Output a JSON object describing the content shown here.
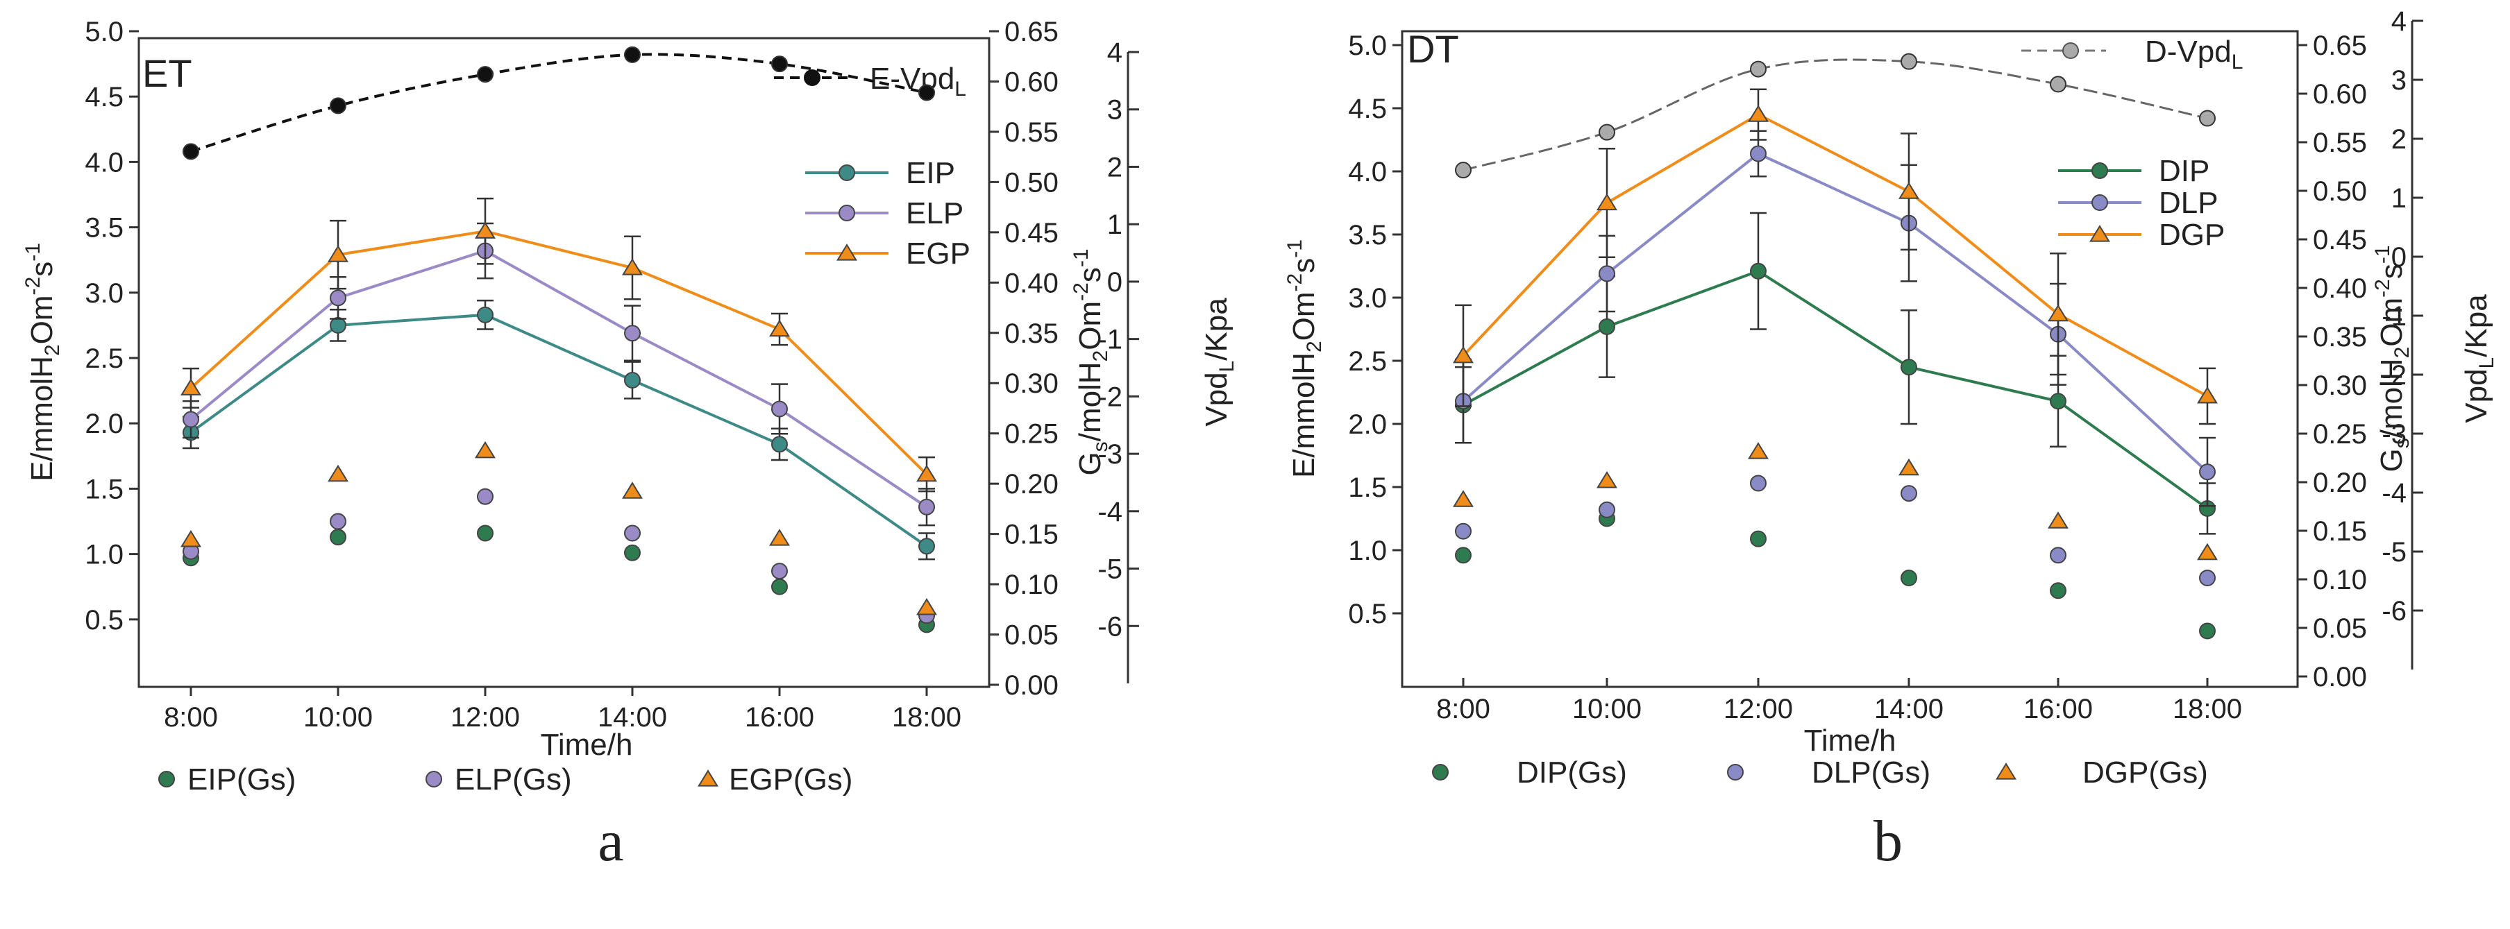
{
  "chart_data": [
    {
      "type": "line",
      "panel_tag": "ET",
      "panel_label": "a",
      "xlabel": "Time/h",
      "categories": [
        "8:00",
        "10:00",
        "12:00",
        "14:00",
        "16:00",
        "18:00"
      ],
      "left_axis": {
        "label": "E/mmolH2Om-2s-1",
        "ylim": [
          0,
          5
        ],
        "ticks": [
          "0.5",
          "1.0",
          "1.5",
          "2.0",
          "2.5",
          "3.0",
          "3.5",
          "4.0",
          "4.5",
          "5.0"
        ]
      },
      "gs_axis": {
        "label": "Gs/molH2Om-2s-1",
        "ylim": [
          0,
          0.65
        ],
        "ticks": [
          "0.00",
          "0.05",
          "0.10",
          "0.15",
          "0.20",
          "0.25",
          "0.30",
          "0.35",
          "0.40",
          "0.45",
          "0.50",
          "0.55",
          "0.60",
          "0.65"
        ]
      },
      "vpd_axis": {
        "label": "VpdL/Kpa",
        "ylim": [
          -7,
          4
        ],
        "ticks": [
          "-6",
          "-5",
          "-4",
          "-3",
          "-2",
          "-1",
          "0",
          "1",
          "2",
          "3",
          "4"
        ]
      },
      "series": [
        {
          "name": "EIP",
          "axis": "left",
          "marker": "circle",
          "color": "#3d8a86",
          "values": [
            1.93,
            2.75,
            2.83,
            2.33,
            1.84,
            1.06
          ],
          "errors": [
            0.12,
            0.12,
            0.11,
            0.14,
            0.12,
            0.1
          ]
        },
        {
          "name": "ELP",
          "axis": "left",
          "marker": "circle",
          "color": "#9a8ac6",
          "values": [
            2.03,
            2.96,
            3.32,
            2.69,
            2.11,
            1.36
          ],
          "errors": [
            0.14,
            0.16,
            0.21,
            0.21,
            0.19,
            0.14
          ]
        },
        {
          "name": "EGP",
          "axis": "left",
          "marker": "triangle",
          "color": "#f08c1a",
          "values": [
            2.27,
            3.29,
            3.47,
            3.19,
            2.72,
            1.61
          ],
          "errors": [
            0.15,
            0.26,
            0.25,
            0.24,
            0.12,
            0.13
          ]
        }
      ],
      "gs_series": [
        {
          "name": "EIP(Gs)",
          "marker": "circle",
          "color": "#2e7b4f",
          "values": [
            0.97,
            1.13,
            1.16,
            1.01,
            0.75,
            0.46
          ]
        },
        {
          "name": "ELP(Gs)",
          "marker": "circle",
          "color": "#9a8ac6",
          "values": [
            1.02,
            1.25,
            1.44,
            1.16,
            0.87,
            0.53
          ]
        },
        {
          "name": "EGP(Gs)",
          "marker": "triangle",
          "color": "#f08c1a",
          "values": [
            1.11,
            1.61,
            1.79,
            1.48,
            1.12,
            0.59
          ]
        }
      ],
      "vpd_series": {
        "name": "E-VpdL",
        "color": "#111111",
        "values": [
          4.08,
          4.43,
          4.67,
          4.82,
          4.75,
          4.53
        ]
      }
    },
    {
      "type": "line",
      "panel_tag": "DT",
      "panel_label": "b",
      "xlabel": "Time/h",
      "categories": [
        "8:00",
        "10:00",
        "12:00",
        "14:00",
        "16:00",
        "18:00"
      ],
      "left_axis": {
        "label": "E/mmolH2Om-2s-1",
        "ylim": [
          0,
          5
        ],
        "ticks": [
          "0.5",
          "1.0",
          "1.5",
          "2.0",
          "2.5",
          "3.0",
          "3.5",
          "4.0",
          "4.5",
          "5.0"
        ]
      },
      "gs_axis": {
        "label": "Gs/molH2Om-2s-1",
        "ylim": [
          0,
          0.65
        ],
        "ticks": [
          "0.00",
          "0.05",
          "0.10",
          "0.15",
          "0.20",
          "0.25",
          "0.30",
          "0.35",
          "0.40",
          "0.45",
          "0.50",
          "0.55",
          "0.60",
          "0.65"
        ]
      },
      "vpd_axis": {
        "label": "VpdL/Kpa",
        "ylim": [
          -7,
          4
        ],
        "ticks": [
          "-6",
          "-5",
          "-4",
          "-3",
          "-2",
          "-1",
          "0",
          "1",
          "2",
          "3",
          "4"
        ]
      },
      "series": [
        {
          "name": "DIP",
          "axis": "left",
          "marker": "circle",
          "color": "#2e7b4f",
          "values": [
            2.15,
            2.77,
            3.21,
            2.45,
            2.18,
            1.33
          ],
          "errors": [
            0.3,
            0.4,
            0.46,
            0.45,
            0.36,
            0.2
          ]
        },
        {
          "name": "DLP",
          "axis": "left",
          "marker": "circle",
          "color": "#8a8ac6",
          "values": [
            2.18,
            3.19,
            4.14,
            3.59,
            2.71,
            1.62
          ],
          "errors": [
            0.33,
            0.3,
            0.18,
            0.46,
            0.4,
            0.27
          ]
        },
        {
          "name": "DGP",
          "axis": "left",
          "marker": "triangle",
          "color": "#f08c1a",
          "values": [
            2.54,
            3.75,
            4.45,
            3.84,
            2.87,
            2.22
          ],
          "errors": [
            0.4,
            0.43,
            0.2,
            0.46,
            0.48,
            0.22
          ]
        }
      ],
      "gs_series": [
        {
          "name": "DIP(Gs)",
          "marker": "circle",
          "color": "#2e7b4f",
          "values": [
            0.96,
            1.25,
            1.09,
            0.78,
            0.68,
            0.36
          ]
        },
        {
          "name": "DLP(Gs)",
          "marker": "circle",
          "color": "#8a8ac6",
          "values": [
            1.15,
            1.32,
            1.53,
            1.45,
            0.96,
            0.78
          ]
        },
        {
          "name": "DGP(Gs)",
          "marker": "triangle",
          "color": "#f08c1a",
          "values": [
            1.4,
            1.55,
            1.78,
            1.65,
            1.23,
            0.98
          ]
        }
      ],
      "vpd_series": {
        "name": "D-VpdL",
        "color": "#777777",
        "values": [
          4.01,
          4.31,
          4.81,
          4.87,
          4.69,
          4.42
        ]
      }
    }
  ]
}
